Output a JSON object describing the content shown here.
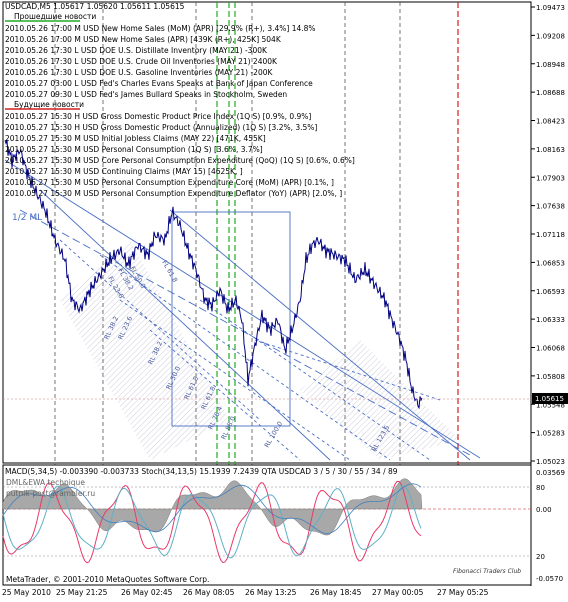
{
  "header": {
    "symbol_line": "USDCAD,M5  1.05617 1.05620 1.05611 1.05615"
  },
  "news": {
    "past_title": "Прошедшие новости",
    "future_title": "Будущие новости",
    "past": [
      "2010.05.26 17:00 M USD New Home Sales (MoM) (APR) [29.9% (R+), 3.4%] 14.8%",
      "2010.05.26 17:00 M USD New Home Sales (APR) [439K (R+), 425K] 504K",
      "2010.05.26 17:30 L USD DOE U.S. Distillate Inventory (MAY 21) -300K",
      "2010.05.26 17:30 L USD DOE U.S. Crude Oil Inventories (MAY 21) 2400K",
      "2010.05.26 17:30 L USD DOE U.S. Gasoline Inventories (MAY 21) -200K",
      "2010.05.27 03:00 L USD Fed's Charles Evans Speaks at Bank of Japan Conference",
      "2010.05.27 09:30 L USD Fed's James Bullard Speaks in Stockholm, Sweden"
    ],
    "future": [
      "2010.05.27 15:30 H USD Gross Domestic Product Price Index (1Q S) [0.9%, 0.9%]",
      "2010.05.27 15:30 H USD Gross Domestic Product (Annualized) (1Q S) [3.2%, 3.5%]",
      "2010.05.27 15:30 M USD Initial Jobless Claims (MAY 22) [471K, 455K]",
      "2010.05.27 15:30 M USD Personal Consumption (1Q S) [3.6%, 3.7%]",
      "2010.05.27 15:30 M USD Core Personal Consumption Expenditure (QoQ) (1Q S) [0.6%, 0.6%]",
      "2010.05.27 15:30 M USD Continuing Claims (MAY 15) [4625K, ]",
      "2010.05.27 15:30 M USD Personal Consumption Expenditure Core (MoM) (APR) [0.1%, ]",
      "2010.05.27 15:30 M USD Personal Consumption Expenditure Deflator (YoY) (APR) [2.0%, ]"
    ]
  },
  "annotations": {
    "half_ml": "1/2 ML",
    "fib_labels": [
      "RL 38.2",
      "RL 61.8",
      "RL 76.4",
      "RL 88.0",
      "RL 100.0",
      "RL 123.6",
      "RL 50.0",
      "RL 23.6",
      "RL 38.2",
      "RL 61.8",
      "FL 61.8",
      "FL 23.6",
      "FL 38.2",
      "FL 50.0"
    ]
  },
  "price_axis": {
    "labels": [
      "1.09473",
      "1.09208",
      "1.08948",
      "1.08688",
      "1.08423",
      "1.08163",
      "1.07903",
      "1.07638",
      "1.07118",
      "1.06853",
      "1.06593",
      "1.06333",
      "1.06068",
      "1.05808",
      "1.05548",
      "1.05283",
      "1.05023"
    ],
    "current": "1.05615"
  },
  "indicator": {
    "title_line": "MACD(5,34,5) -0.003390 -0.003733  Stoch(34,13,5) 15.1939 7.2439  QTA USDCAD 3 / 5 / 30 / 55 / 34 / 89",
    "watermark1": "DML&EWA technique",
    "watermark2": "putnik-post@rambler.ru",
    "axis_labels": [
      "0.03569",
      "80",
      "0.00",
      "20",
      "-0.0570"
    ],
    "copyright": "MetaTrader, © 2001-2010 MetaQuotes Software Corp.",
    "club": "Fibonacci Traders Club"
  },
  "time_axis": {
    "labels": [
      "25 May 2010",
      "25 May 21:25",
      "26 May 02:45",
      "26 May 08:05",
      "26 May 13:25",
      "26 May 18:45",
      "27 May 00:05",
      "27 May 05:25"
    ]
  },
  "colors": {
    "price_line": "#000080",
    "channel": "#4a6fc4",
    "macd_fill": "#a8a8a8",
    "stoch_main": "#e83a6a",
    "stoch_signal": "#5fb0c8",
    "green_line": "#22aa22",
    "red_line": "#d02020"
  }
}
